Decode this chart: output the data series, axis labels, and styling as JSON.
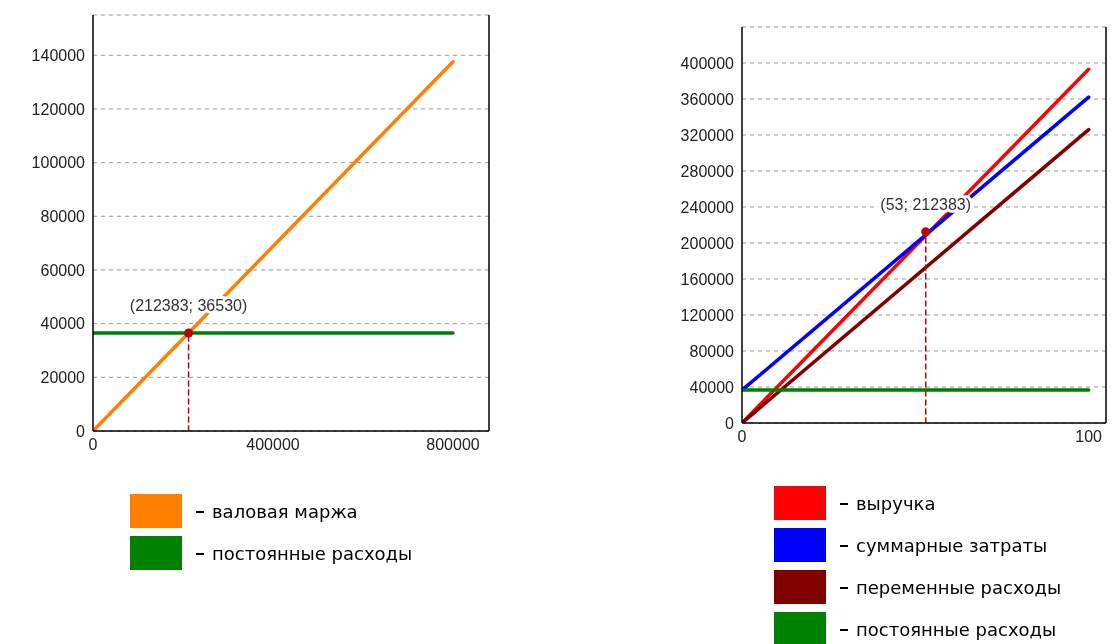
{
  "chart_data": [
    {
      "type": "line",
      "xlim": [
        0,
        880000
      ],
      "xticks": [
        0,
        400000,
        800000
      ],
      "ylim": [
        0,
        155000
      ],
      "yticks": [
        0,
        20000,
        40000,
        60000,
        80000,
        100000,
        120000,
        140000
      ],
      "grid": "y",
      "legend": "bottom",
      "annotations": [
        {
          "text": "(212383; 36530)",
          "x": 212383,
          "y": 36530
        }
      ],
      "series": [
        {
          "name": "валовая маржа",
          "color": "#ff8000",
          "x": [
            0,
            800000
          ],
          "values": [
            0,
            137600
          ]
        },
        {
          "name": "постоянные расходы",
          "color": "#008000",
          "x": [
            0,
            800000
          ],
          "values": [
            36530,
            36530
          ]
        },
        {
          "type": "line",
          "line_style": "dashed",
          "color": "#c00000",
          "x": [
            212383,
            212383
          ],
          "values": [
            0,
            36530
          ]
        },
        {
          "type": "scatter",
          "marker": "circle",
          "color": "#c00000",
          "x": [
            212383
          ],
          "values": [
            36530
          ]
        }
      ]
    },
    {
      "type": "line",
      "xlim": [
        0,
        105
      ],
      "xticks": [
        0,
        100
      ],
      "ylim": [
        0,
        440000
      ],
      "yticks": [
        0,
        40000,
        80000,
        120000,
        160000,
        200000,
        240000,
        280000,
        320000,
        360000,
        400000
      ],
      "grid": "y",
      "legend": "bottom",
      "annotations": [
        {
          "text": "(53; 212383)",
          "x": 53,
          "y": 212383
        }
      ],
      "series": [
        {
          "name": "выручка",
          "color": "#ff0000",
          "x": [
            0,
            100
          ],
          "values": [
            0,
            393000
          ]
        },
        {
          "name": "суммарные затраты",
          "color": "#0000ff",
          "x": [
            0,
            100
          ],
          "values": [
            36530,
            362000
          ]
        },
        {
          "name": "переменные расходы",
          "color": "#800000",
          "x": [
            0,
            100
          ],
          "values": [
            0,
            326000
          ]
        },
        {
          "name": "постоянные расходы",
          "color": "#008000",
          "x": [
            0,
            100
          ],
          "values": [
            36530,
            36530
          ]
        },
        {
          "type": "line",
          "line_style": "dashed",
          "color": "#c00000",
          "x": [
            53,
            53
          ],
          "values": [
            0,
            212383
          ]
        },
        {
          "type": "scatter",
          "marker": "circle",
          "color": "#c00000",
          "x": [
            53
          ],
          "values": [
            212383
          ]
        }
      ]
    }
  ]
}
